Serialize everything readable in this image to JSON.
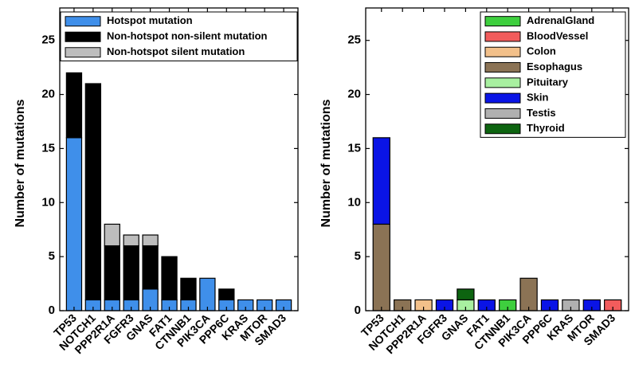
{
  "chart_data": [
    {
      "type": "bar",
      "stacked": true,
      "categories": [
        "TP53",
        "NOTCH1",
        "PPP2R1A",
        "FGFR3",
        "GNAS",
        "FAT1",
        "CTNNB1",
        "PIK3CA",
        "PPP6C",
        "KRAS",
        "MTOR",
        "SMAD3"
      ],
      "series": [
        {
          "name": "Hotspot mutation",
          "color": "#3f8fea",
          "values": [
            16,
            1,
            1,
            1,
            2,
            1,
            1,
            3,
            1,
            1,
            1,
            1
          ]
        },
        {
          "name": "Non-hotspot non-silent mutation",
          "color": "#000000",
          "values": [
            6,
            20,
            5,
            5,
            4,
            4,
            2,
            0,
            1,
            0,
            0,
            0
          ]
        },
        {
          "name": "Non-hotspot silent mutation",
          "color": "#bdbdbd",
          "values": [
            0,
            0,
            2,
            1,
            1,
            0,
            0,
            0,
            0,
            0,
            0,
            0
          ]
        }
      ],
      "ylabel": "Number of mutations",
      "ylim": [
        0,
        28
      ],
      "yticks": [
        0,
        5,
        10,
        15,
        20,
        25
      ],
      "legend": "top",
      "grid": false
    },
    {
      "type": "bar",
      "stacked": true,
      "categories": [
        "TP53",
        "NOTCH1",
        "PPP2R1A",
        "FGFR3",
        "GNAS",
        "FAT1",
        "CTNNB1",
        "PIK3CA",
        "PPP6C",
        "KRAS",
        "MTOR",
        "SMAD3"
      ],
      "series": [
        {
          "name": "AdrenalGland",
          "color": "#3ecf3e",
          "values": [
            0,
            0,
            0,
            0,
            0,
            0,
            1,
            0,
            0,
            0,
            0,
            0
          ]
        },
        {
          "name": "BloodVessel",
          "color": "#f25c5c",
          "values": [
            0,
            0,
            0,
            0,
            0,
            0,
            0,
            0,
            0,
            0,
            0,
            1
          ]
        },
        {
          "name": "Colon",
          "color": "#f2c08a",
          "values": [
            0,
            0,
            1,
            0,
            0,
            0,
            0,
            0,
            0,
            0,
            0,
            0
          ]
        },
        {
          "name": "Esophagus",
          "color": "#8b7355",
          "values": [
            8,
            1,
            0,
            0,
            0,
            0,
            0,
            3,
            0,
            0,
            0,
            0
          ]
        },
        {
          "name": "Pituitary",
          "color": "#a8f0a0",
          "values": [
            0,
            0,
            0,
            0,
            1,
            0,
            0,
            0,
            0,
            0,
            0,
            0
          ]
        },
        {
          "name": "Skin",
          "color": "#0a14e6",
          "values": [
            8,
            0,
            0,
            1,
            0,
            1,
            0,
            0,
            1,
            0,
            1,
            0
          ]
        },
        {
          "name": "Testis",
          "color": "#b0b0b0",
          "values": [
            0,
            0,
            0,
            0,
            0,
            0,
            0,
            0,
            0,
            1,
            0,
            0
          ]
        },
        {
          "name": "Thyroid",
          "color": "#0d6410",
          "values": [
            0,
            0,
            0,
            0,
            1,
            0,
            0,
            0,
            0,
            0,
            0,
            0
          ]
        }
      ],
      "ylabel": "Number of mutations",
      "ylim": [
        0,
        28
      ],
      "yticks": [
        0,
        5,
        10,
        15,
        20,
        25
      ],
      "legend": "top-right",
      "grid": false
    }
  ]
}
